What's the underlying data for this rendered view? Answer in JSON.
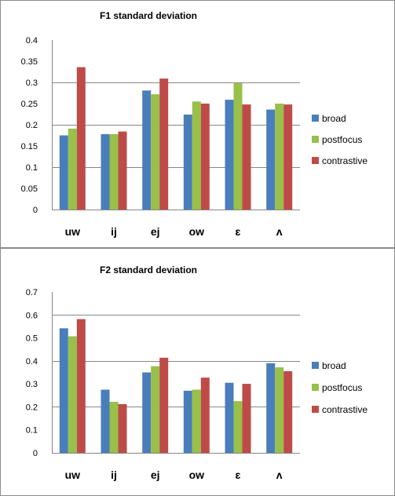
{
  "colors": {
    "broad": "#4a7ebb",
    "postfocus": "#98c04a",
    "contrastive": "#be4b48",
    "frame": "#8c8c8c",
    "grid": "#868686"
  },
  "chart_data": [
    {
      "type": "bar",
      "title": "F1 standard deviation",
      "categories": [
        "uw",
        "ij",
        "ej",
        "ow",
        "ɛ",
        "ʌ"
      ],
      "series": [
        {
          "name": "broad",
          "values": [
            0.175,
            0.178,
            0.281,
            0.224,
            0.259,
            0.236
          ]
        },
        {
          "name": "postfocus",
          "values": [
            0.191,
            0.178,
            0.272,
            0.255,
            0.298,
            0.25
          ]
        },
        {
          "name": "contrastive",
          "values": [
            0.336,
            0.184,
            0.309,
            0.25,
            0.248,
            0.248
          ]
        }
      ],
      "ylim": [
        0,
        0.4
      ],
      "yticks": [
        "0",
        "0.05",
        "0.1",
        "0.15",
        "0.2",
        "0.25",
        "0.3",
        "0.35",
        "0.4"
      ],
      "ytick_values": [
        0,
        0.05,
        0.1,
        0.15,
        0.2,
        0.25,
        0.3,
        0.35,
        0.4
      ],
      "grid_values": [
        0.1,
        0.2,
        0.3
      ],
      "legend": "right"
    },
    {
      "type": "bar",
      "title": "F2 standard deviation",
      "categories": [
        "uw",
        "ij",
        "ej",
        "ow",
        "ɛ",
        "ʌ"
      ],
      "series": [
        {
          "name": "broad",
          "values": [
            0.542,
            0.275,
            0.35,
            0.27,
            0.305,
            0.39
          ]
        },
        {
          "name": "postfocus",
          "values": [
            0.507,
            0.222,
            0.377,
            0.275,
            0.225,
            0.372
          ]
        },
        {
          "name": "contrastive",
          "values": [
            0.582,
            0.212,
            0.414,
            0.327,
            0.3,
            0.355
          ]
        }
      ],
      "ylim": [
        0,
        0.7
      ],
      "yticks": [
        "0",
        "0.1",
        "0.2",
        "0.3",
        "0.4",
        "0.5",
        "0.6",
        "0.7"
      ],
      "ytick_values": [
        0,
        0.1,
        0.2,
        0.3,
        0.4,
        0.5,
        0.6,
        0.7
      ],
      "grid_values": [
        0.2,
        0.4,
        0.6
      ],
      "legend": "right"
    }
  ]
}
